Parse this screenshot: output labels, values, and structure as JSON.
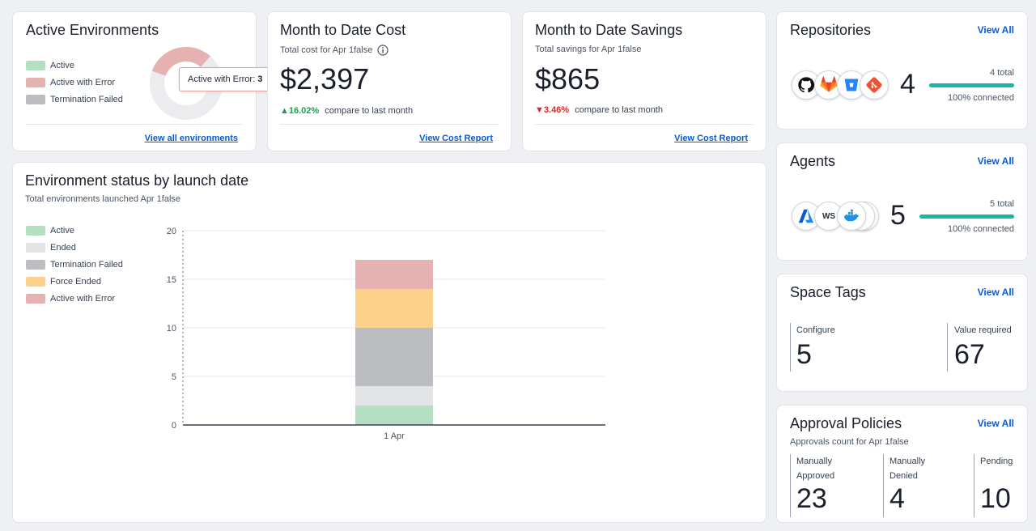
{
  "active_envs": {
    "title": "Active Environments",
    "legend": [
      {
        "label": "Active",
        "color": "#b5dfc3"
      },
      {
        "label": "Active with Error",
        "color": "#e6b1b1"
      },
      {
        "label": "Termination Failed",
        "color": "#bcbdc0"
      }
    ],
    "tooltip_label": "Active with Error:",
    "tooltip_value": "3",
    "link": "View all environments"
  },
  "cost": {
    "title": "Month to Date Cost",
    "subtitle": "Total cost for Apr 1false",
    "info_icon": "info-icon",
    "amount": "$2,397",
    "trend_value": "16.02%",
    "trend_text": "compare to last month",
    "link": "View Cost Report"
  },
  "savings": {
    "title": "Month to Date Savings",
    "subtitle": "Total savings for Apr 1false",
    "amount": "$865",
    "trend_value": "3.46%",
    "trend_text": "compare to last month",
    "link": "View Cost Report"
  },
  "env_status": {
    "title": "Environment status by launch date",
    "subtitle": "Total environments launched Apr 1false",
    "legend": [
      {
        "label": "Active",
        "color": "#b5dfc3"
      },
      {
        "label": "Ended",
        "color": "#e3e4e6"
      },
      {
        "label": "Termination Failed",
        "color": "#bcbdc0"
      },
      {
        "label": "Force Ended",
        "color": "#fdd18a"
      },
      {
        "label": "Active with Error",
        "color": "#e6b1b1"
      }
    ]
  },
  "chart_data": {
    "type": "bar",
    "stacked": true,
    "categories": [
      "1 Apr"
    ],
    "series": [
      {
        "name": "Active",
        "values": [
          2
        ],
        "color": "#b5dfc3"
      },
      {
        "name": "Ended",
        "values": [
          2
        ],
        "color": "#e3e4e6"
      },
      {
        "name": "Termination Failed",
        "values": [
          6
        ],
        "color": "#bcbdc0"
      },
      {
        "name": "Force Ended",
        "values": [
          4
        ],
        "color": "#fdd18a"
      },
      {
        "name": "Active with Error",
        "values": [
          3
        ],
        "color": "#e6b1b1"
      }
    ],
    "yticks": [
      "0",
      "5",
      "10",
      "15",
      "20"
    ],
    "ylim": [
      0,
      20
    ],
    "grid": true
  },
  "repositories": {
    "title": "Repositories",
    "view_all": "View All",
    "count": "4",
    "total": "4 total",
    "connected": "100% connected",
    "connected_fraction": 1,
    "icons": [
      "github-icon",
      "gitlab-icon",
      "bitbucket-icon",
      "git-icon"
    ]
  },
  "agents": {
    "title": "Agents",
    "view_all": "View All",
    "count": "5",
    "total": "5 total",
    "connected": "100% connected",
    "connected_fraction": 1,
    "icons": [
      "azure-icon",
      "aws-icon",
      "docker-icon"
    ],
    "aws_text": "WS"
  },
  "space_tags": {
    "title": "Space Tags",
    "view_all": "View All",
    "configure_label": "Configure",
    "configure_value": "5",
    "required_label": "Value required",
    "required_value": "67"
  },
  "approvals": {
    "title": "Approval Policies",
    "view_all": "View All",
    "subtitle": "Approvals count for Apr 1false",
    "approved_label_1": "Manually",
    "approved_label_2": "Approved",
    "approved_value": "23",
    "denied_label_1": "Manually",
    "denied_label_2": "Denied",
    "denied_value": "4",
    "pending_label": "Pending",
    "pending_value": "10"
  }
}
